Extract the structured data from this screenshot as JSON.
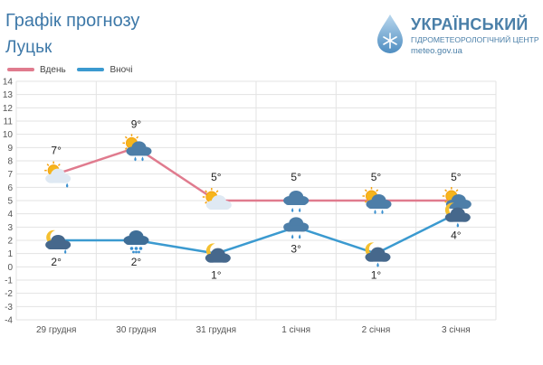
{
  "header": {
    "title": "Графік прогнозу",
    "city": "Луцьк"
  },
  "logo": {
    "name": "УКРАЇНСЬКИЙ",
    "subtitle": "ГІДРОМЕТЕОРОЛОГІЧНИЙ ЦЕНТР",
    "url": "meteo.gov.ua",
    "icon": "droplet-snowflake-icon"
  },
  "colors": {
    "day": "#e07b8e",
    "night": "#3b9ad0",
    "text": "#3d78a8",
    "grid": "#e3e3e3"
  },
  "chart_data": {
    "type": "line",
    "categories": [
      "29 грудня",
      "30 грудня",
      "31 грудня",
      "1 січня",
      "2 січня",
      "3 січня"
    ],
    "series": [
      {
        "name": "Вдень",
        "values": [
          7,
          9,
          5,
          5,
          5,
          5
        ],
        "labels": [
          "7°",
          "9°",
          "5°",
          "5°",
          "5°",
          "5°"
        ],
        "icons": [
          "partly-cloudy-drizzle-icon",
          "sun-cloud-rain-icon",
          "sun-behind-cloud-icon",
          "cloud-rain-icon",
          "sun-cloud-rain-icon",
          "sun-cloud-rain-icon"
        ]
      },
      {
        "name": "Вночі",
        "values": [
          2,
          2,
          1,
          3,
          1,
          4
        ],
        "labels": [
          "2°",
          "2°",
          "1°",
          "3°",
          "1°",
          "4°"
        ],
        "icons": [
          "moon-cloud-drizzle-icon",
          "cloud-snow-icon",
          "moon-cloud-icon",
          "cloud-rain-icon",
          "moon-cloud-rain-icon",
          "moon-cloud-rain-icon"
        ]
      }
    ],
    "ylim": [
      -4,
      14
    ],
    "yticks": [
      14,
      13,
      12,
      11,
      10,
      9,
      8,
      7,
      6,
      5,
      4,
      3,
      2,
      1,
      0,
      -1,
      -2,
      -3,
      -4
    ],
    "grid": true,
    "legend": "top-left"
  }
}
